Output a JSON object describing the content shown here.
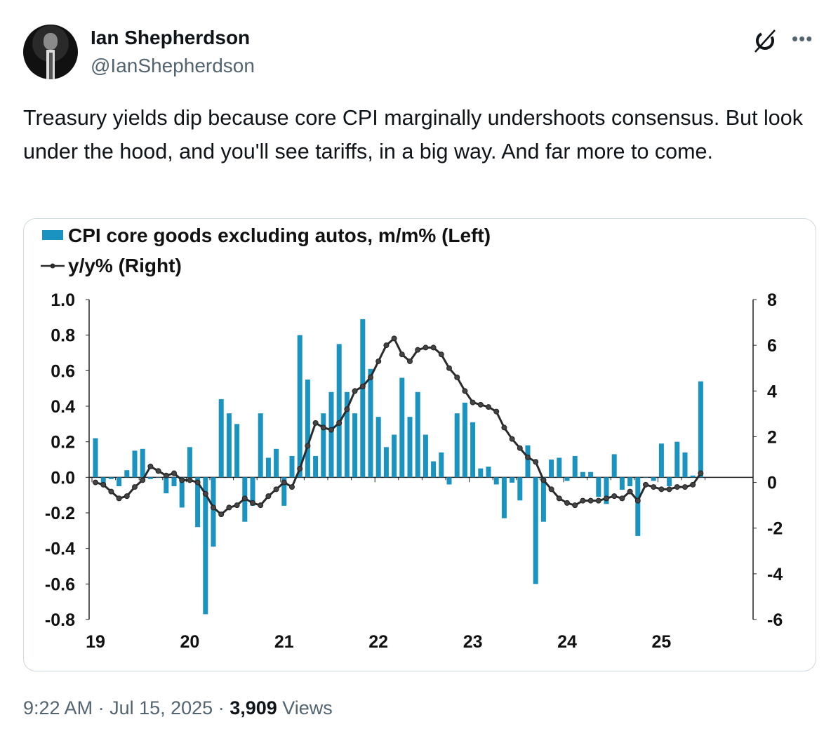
{
  "author": {
    "name": "Ian Shepherdson",
    "handle": "@IanShepherdson"
  },
  "icons": {
    "grok": "grok-icon",
    "more": "more-icon"
  },
  "tweet": {
    "text": "Treasury yields dip because core CPI marginally undershoots consensus. But look under the hood, and you'll see tariffs, in a big way. And far more to come."
  },
  "footer": {
    "time": "9:22 AM",
    "sep1": " · ",
    "date": "Jul 15, 2025",
    "sep2": " · ",
    "views_count": "3,909",
    "views_label": " Views"
  },
  "colors": {
    "bar": "#1a93c0",
    "line": "#2b2b2b",
    "border": "#cfd9de",
    "muted": "#536471"
  },
  "chart_data": {
    "type": "bar",
    "legend": [
      "CPI core goods excluding autos, m/m% (Left)",
      "y/y% (Right)"
    ],
    "legend_placement": "top-left",
    "x_tick_labels": [
      "19",
      "20",
      "21",
      "22",
      "23",
      "24",
      "25"
    ],
    "left_ticks": [
      "1.0",
      "0.8",
      "0.6",
      "0.4",
      "0.2",
      "0.0",
      "-0.2",
      "-0.4",
      "-0.6",
      "-0.8"
    ],
    "right_ticks": [
      "8",
      "6",
      "4",
      "2",
      "0",
      "-2",
      "-4",
      "-6"
    ],
    "ylim_left": [
      -0.8,
      1.0
    ],
    "ylim_right": [
      -6,
      8
    ],
    "start": "2019-01",
    "frequency": "monthly",
    "series": [
      {
        "name": "CPI core goods excluding autos, m/m%",
        "axis": "left",
        "type": "bar",
        "values": [
          0.22,
          -0.04,
          -0.01,
          -0.05,
          0.04,
          0.15,
          0.16,
          -0.01,
          0.0,
          -0.09,
          -0.05,
          -0.17,
          0.17,
          -0.28,
          -0.77,
          -0.39,
          0.44,
          0.36,
          0.3,
          -0.25,
          -0.16,
          0.36,
          0.11,
          0.16,
          -0.16,
          0.12,
          0.8,
          0.55,
          0.12,
          0.36,
          0.48,
          0.75,
          0.48,
          0.36,
          0.89,
          0.61,
          0.34,
          0.17,
          0.24,
          0.56,
          0.34,
          0.48,
          0.24,
          0.09,
          0.14,
          -0.04,
          0.36,
          0.42,
          0.31,
          0.05,
          0.06,
          -0.04,
          -0.23,
          -0.03,
          -0.13,
          0.18,
          -0.6,
          -0.25,
          0.1,
          0.11,
          -0.02,
          0.12,
          0.03,
          0.03,
          -0.11,
          -0.15,
          0.13,
          -0.07,
          -0.05,
          -0.33,
          0.0,
          -0.02,
          0.19,
          -0.05,
          0.2,
          0.14,
          0.01,
          0.54
        ]
      },
      {
        "name": "y/y%",
        "axis": "right",
        "type": "line",
        "values": [
          0.0,
          -0.1,
          -0.4,
          -0.7,
          -0.6,
          -0.2,
          0.1,
          0.7,
          0.5,
          0.3,
          0.4,
          0.1,
          0.1,
          0.0,
          -0.5,
          -1.1,
          -1.4,
          -1.1,
          -1.0,
          -0.7,
          -0.9,
          -1.0,
          -0.6,
          -0.3,
          0.0,
          -0.2,
          0.6,
          1.6,
          2.6,
          2.4,
          2.3,
          2.6,
          3.2,
          4.0,
          4.2,
          4.6,
          5.3,
          6.0,
          6.3,
          5.6,
          5.3,
          5.8,
          5.9,
          5.9,
          5.6,
          5.0,
          4.6,
          4.0,
          3.5,
          3.4,
          3.3,
          3.1,
          2.4,
          1.9,
          1.5,
          1.1,
          0.9,
          0.1,
          -0.3,
          -0.7,
          -0.9,
          -1.0,
          -0.8,
          -0.8,
          -0.8,
          -0.7,
          -0.6,
          -0.7,
          -0.4,
          -0.8,
          -0.1,
          -0.2,
          -0.3,
          -0.3,
          -0.2,
          -0.2,
          -0.1,
          0.4
        ]
      }
    ]
  }
}
